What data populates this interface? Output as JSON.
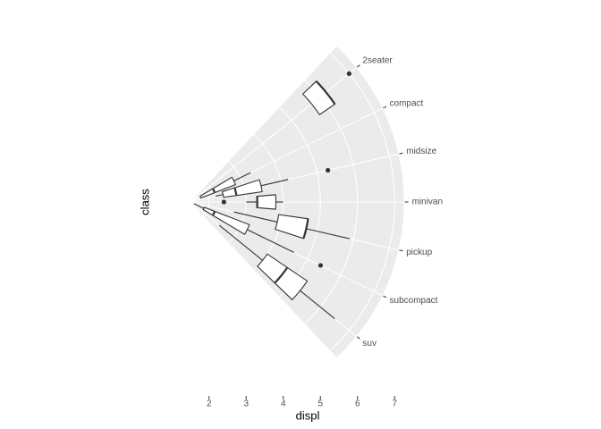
{
  "chart_data": {
    "type": "radial-boxplot",
    "x_label": "displ",
    "y_label": "class",
    "categories": [
      "2seater",
      "compact",
      "midsize",
      "minivan",
      "pickup",
      "subcompact",
      "suv"
    ],
    "rlim": [
      1.5,
      7.25
    ],
    "rticks": [
      2,
      3,
      4,
      5,
      6,
      7
    ],
    "grid": true,
    "boxes": [
      {
        "lower": 5.7,
        "q1": 5.7,
        "median": 6.2,
        "q3": 6.2,
        "upper": 6.2,
        "outliers": [
          7.0
        ]
      },
      {
        "lower": 1.8,
        "q1": 1.8,
        "median": 2.2,
        "q3": 2.8,
        "upper": 3.3,
        "outliers": []
      },
      {
        "lower": 2.2,
        "q1": 2.4,
        "median": 2.75,
        "q3": 3.45,
        "upper": 4.2,
        "outliers": [
          5.3
        ]
      },
      {
        "lower": 3.0,
        "q1": 3.3,
        "median": 3.3,
        "q3": 3.8,
        "upper": 4.0,
        "outliers": [
          2.4
        ]
      },
      {
        "lower": 2.7,
        "q1": 3.9,
        "median": 4.7,
        "q3": 4.7,
        "upper": 5.9,
        "outliers": []
      },
      {
        "lower": 1.6,
        "q1": 1.9,
        "median": 2.2,
        "q3": 3.2,
        "upper": 4.6,
        "outliers": [
          5.4
        ]
      },
      {
        "lower": 2.5,
        "q1": 4.0,
        "median": 4.65,
        "q3": 5.3,
        "upper": 6.5,
        "outliers": []
      }
    ]
  }
}
